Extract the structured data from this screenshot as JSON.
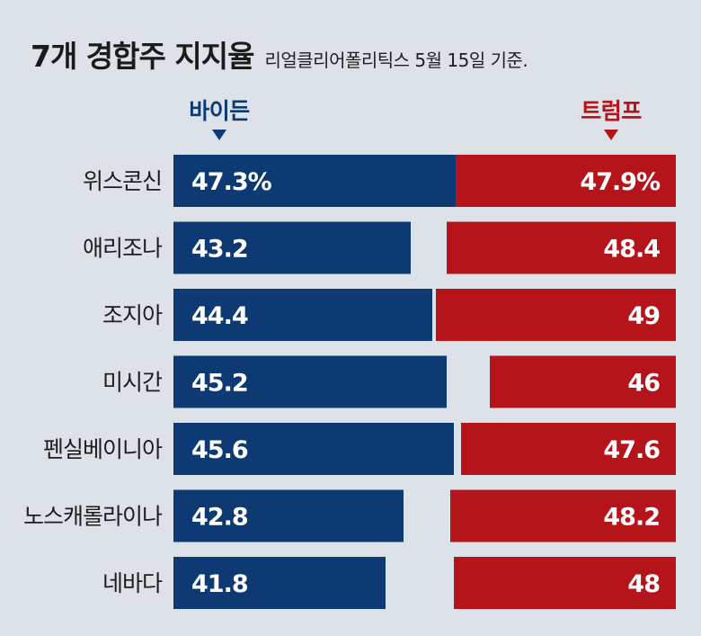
{
  "header": {
    "title": "7개 경합주 지지율",
    "subtitle": "리얼클리어폴리틱스 5월 15일 기준."
  },
  "legend": {
    "biden": "바이든",
    "trump": "트럼프"
  },
  "colors": {
    "biden": "#0e3a73",
    "trump": "#b5141b",
    "background": "#dde2e9"
  },
  "chart_data": {
    "type": "bar",
    "title": "7개 경합주 지지율",
    "subtitle": "리얼클리어폴리틱스 5월 15일 기준.",
    "categories": [
      "위스콘신",
      "애리조나",
      "조지아",
      "미시간",
      "펜실베이니아",
      "노스캐롤라이나",
      "네바다"
    ],
    "series": [
      {
        "name": "바이든",
        "values": [
          47.3,
          43.2,
          44.4,
          45.2,
          45.6,
          42.8,
          41.8
        ],
        "labels": [
          "47.3%",
          "43.2",
          "44.4",
          "45.2",
          "45.6",
          "42.8",
          "41.8"
        ]
      },
      {
        "name": "트럼프",
        "values": [
          47.9,
          48.4,
          49,
          46,
          47.6,
          48.2,
          48
        ],
        "labels": [
          "47.9%",
          "48.4",
          "49",
          "46",
          "47.6",
          "48.2",
          "48"
        ]
      }
    ],
    "unit": "%"
  }
}
